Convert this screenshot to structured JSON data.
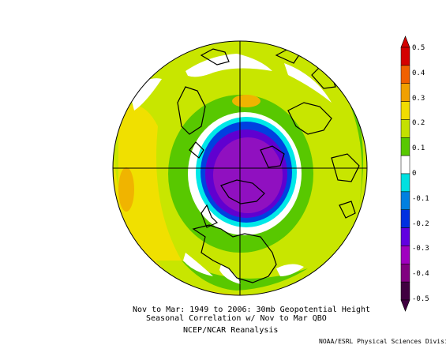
{
  "caption": {
    "line1": "Nov to Mar: 1949 to 2006: 30mb Geopotential Height",
    "line2": "Seasonal Correlation w/ Nov to Mar QBO",
    "line3": "NCEP/NCAR Reanalysis",
    "credit": "NOAA/ESRL Physical Sciences Division"
  },
  "colorbar": {
    "labels": [
      "0.5",
      "0.4",
      "0.3",
      "0.2",
      "0.1",
      "0",
      "-0.1",
      "-0.2",
      "-0.3",
      "-0.4",
      "-0.5"
    ],
    "colors": [
      "#d40000",
      "#f06000",
      "#f0a000",
      "#f0dc00",
      "#c4e000",
      "#58c800",
      "#ffffff",
      "#00e0e0",
      "#0080e0",
      "#0030e0",
      "#6000e0",
      "#a000c0",
      "#800080",
      "#400040"
    ]
  },
  "palette": {
    "yellow_green": "#c8e600",
    "green": "#58c800",
    "yellow": "#f0e000",
    "orange": "#f0b400",
    "white": "#ffffff",
    "cyan": "#00e8e8",
    "blue": "#0040e0",
    "violet": "#6000d0",
    "purple": "#9010c0"
  }
}
